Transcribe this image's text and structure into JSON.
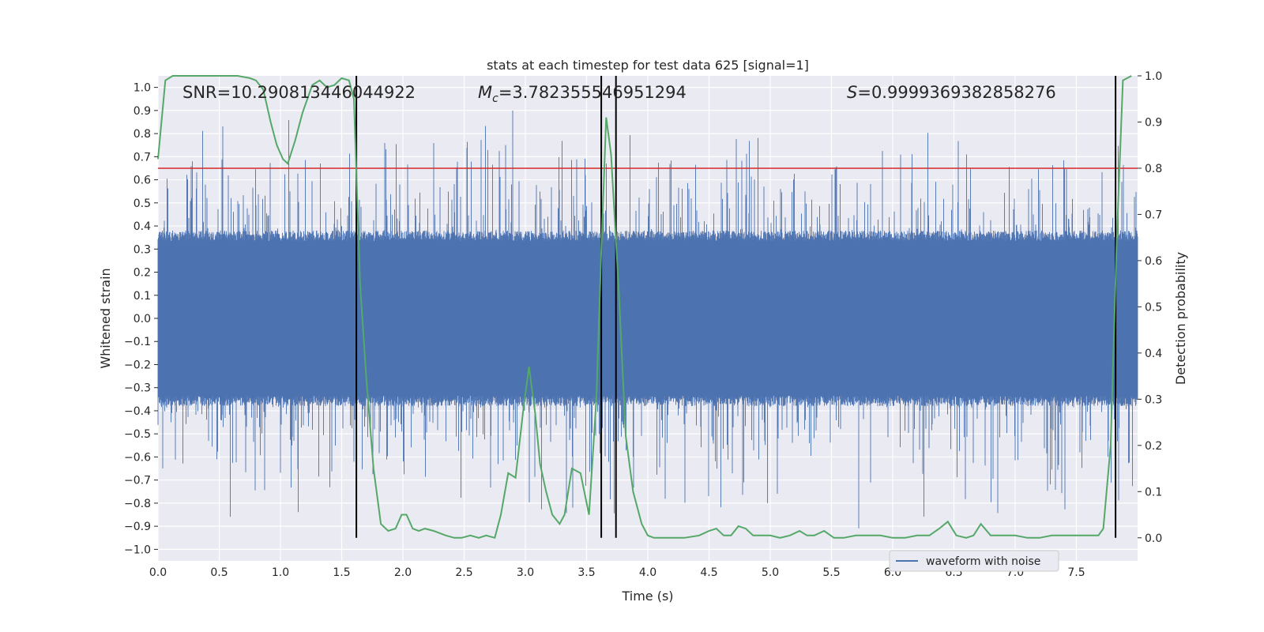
{
  "chart_data": {
    "type": "line",
    "title": "stats at each timestep for test data 625 [signal=1]",
    "xlabel": "Time (s)",
    "ylabel_left": "Whitened strain",
    "ylabel_right": "Detection probability",
    "xlim": [
      0.0,
      8.0
    ],
    "ylim_left": [
      -1.05,
      1.05
    ],
    "ylim_right": [
      -0.05,
      1.0
    ],
    "x_ticks": [
      "0.0",
      "0.5",
      "1.0",
      "1.5",
      "2.0",
      "2.5",
      "3.0",
      "3.5",
      "4.0",
      "4.5",
      "5.0",
      "5.5",
      "6.0",
      "6.5",
      "7.0",
      "7.5"
    ],
    "y_ticks_left": [
      "1.0",
      "0.9",
      "0.8",
      "0.7",
      "0.6",
      "0.5",
      "0.4",
      "0.3",
      "0.2",
      "0.1",
      "0.0",
      "-0.1",
      "-0.2",
      "-0.3",
      "-0.4",
      "-0.5",
      "-0.6",
      "-0.7",
      "-0.8",
      "-0.9",
      "-1.0"
    ],
    "y_ticks_right": [
      "1.0",
      "0.9",
      "0.8",
      "0.7",
      "0.6",
      "0.5",
      "0.4",
      "0.3",
      "0.2",
      "0.1",
      "0.0"
    ],
    "grid": true,
    "legend": {
      "placement": "lower-right",
      "entries": [
        "waveform with noise"
      ]
    },
    "annotations": {
      "snr": "SNR=10.290813446044922",
      "mc_symbol": "M",
      "mc_sub": "c",
      "mc_value": "=3.782355546951294",
      "s_symbol": "S",
      "s_value": "=0.9999369382858276"
    },
    "threshold": {
      "value": 0.8,
      "axis": "right",
      "color": "#d62728"
    },
    "vertical_lines": [
      1.62,
      3.62,
      3.74,
      7.82
    ],
    "series": [
      {
        "name": "waveform with noise",
        "axis": "left",
        "color": "#4c72b0",
        "style": "noise-envelope",
        "envelope_core": 0.38,
        "x_range": [
          0.0,
          8.0
        ]
      },
      {
        "axis": "right",
        "color": "#55a868",
        "x": [
          0.0,
          0.06,
          0.12,
          0.25,
          0.4,
          0.55,
          0.65,
          0.75,
          0.8,
          0.86,
          0.92,
          0.97,
          1.02,
          1.06,
          1.12,
          1.18,
          1.26,
          1.32,
          1.38,
          1.44,
          1.5,
          1.56,
          1.6,
          1.65,
          1.7,
          1.76,
          1.82,
          1.88,
          1.94,
          1.99,
          2.03,
          2.08,
          2.13,
          2.18,
          2.25,
          2.35,
          2.42,
          2.48,
          2.55,
          2.62,
          2.68,
          2.75,
          2.8,
          2.86,
          2.92,
          2.98,
          3.03,
          3.08,
          3.12,
          3.17,
          3.22,
          3.28,
          3.32,
          3.38,
          3.45,
          3.52,
          3.58,
          3.62,
          3.66,
          3.7,
          3.76,
          3.82,
          3.88,
          3.95,
          4.0,
          4.05,
          4.1,
          4.2,
          4.3,
          4.42,
          4.5,
          4.56,
          4.62,
          4.68,
          4.74,
          4.8,
          4.86,
          4.92,
          5.0,
          5.08,
          5.16,
          5.24,
          5.3,
          5.36,
          5.44,
          5.52,
          5.6,
          5.7,
          5.8,
          5.9,
          6.0,
          6.1,
          6.2,
          6.3,
          6.38,
          6.45,
          6.52,
          6.6,
          6.66,
          6.72,
          6.8,
          6.9,
          7.0,
          7.1,
          7.2,
          7.3,
          7.4,
          7.5,
          7.6,
          7.68,
          7.72,
          7.78,
          7.83,
          7.88,
          7.95
        ],
        "values": [
          0.82,
          0.99,
          1.0,
          1.0,
          1.0,
          1.0,
          1.0,
          0.995,
          0.99,
          0.97,
          0.9,
          0.85,
          0.82,
          0.81,
          0.86,
          0.92,
          0.98,
          0.99,
          0.975,
          0.98,
          0.995,
          0.99,
          0.95,
          0.55,
          0.35,
          0.15,
          0.03,
          0.015,
          0.02,
          0.05,
          0.05,
          0.02,
          0.015,
          0.02,
          0.015,
          0.005,
          0.0,
          0.0,
          0.005,
          0.0,
          0.005,
          0.0,
          0.05,
          0.14,
          0.13,
          0.27,
          0.37,
          0.27,
          0.16,
          0.1,
          0.05,
          0.03,
          0.05,
          0.15,
          0.14,
          0.05,
          0.3,
          0.62,
          0.91,
          0.83,
          0.55,
          0.22,
          0.1,
          0.03,
          0.005,
          0.0,
          0.0,
          0.0,
          0.0,
          0.005,
          0.015,
          0.02,
          0.005,
          0.005,
          0.025,
          0.02,
          0.005,
          0.005,
          0.005,
          0.0,
          0.005,
          0.015,
          0.005,
          0.005,
          0.015,
          0.0,
          0.0,
          0.005,
          0.005,
          0.005,
          0.0,
          0.0,
          0.005,
          0.005,
          0.02,
          0.035,
          0.005,
          0.0,
          0.005,
          0.03,
          0.005,
          0.005,
          0.005,
          0.0,
          0.0,
          0.005,
          0.005,
          0.005,
          0.005,
          0.005,
          0.02,
          0.2,
          0.65,
          0.99,
          1.0
        ]
      }
    ]
  }
}
